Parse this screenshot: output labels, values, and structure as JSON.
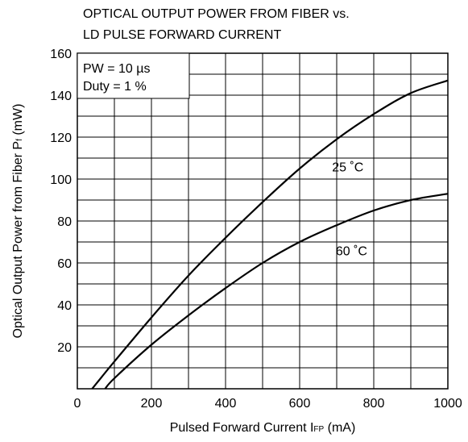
{
  "chart_data": {
    "type": "line",
    "title_lines": [
      "OPTICAL OUTPUT POWER FROM FIBER vs.",
      "LD PULSE FORWARD CURRENT"
    ],
    "xlabel": {
      "main": "Pulsed Forward Current  I",
      "sub": "FP",
      "unit": " (mA)"
    },
    "ylabel": {
      "main": "Optical Output Power from Fiber  P",
      "sub": "f",
      "unit": " (mW)"
    },
    "xlim": [
      0,
      1000
    ],
    "ylim": [
      0,
      160
    ],
    "x_ticks": [
      0,
      200,
      400,
      600,
      800,
      1000
    ],
    "y_ticks": [
      20,
      40,
      60,
      80,
      100,
      120,
      140,
      160
    ],
    "grid": true,
    "conditions": [
      "PW = 10 µs",
      "Duty = 1 %"
    ],
    "series": [
      {
        "name": "25 ˚C",
        "x": [
          40,
          100,
          200,
          300,
          400,
          500,
          600,
          700,
          800,
          900,
          1000
        ],
        "y": [
          0,
          13,
          34,
          54,
          72,
          89,
          105,
          119,
          131,
          141,
          147
        ]
      },
      {
        "name": "60 ˚C",
        "x": [
          75,
          100,
          200,
          300,
          400,
          500,
          600,
          700,
          800,
          900,
          1000
        ],
        "y": [
          0,
          5,
          21,
          35,
          48,
          60,
          70,
          78,
          85,
          90,
          93
        ]
      }
    ],
    "curve_labels": [
      {
        "text": "25 ˚C",
        "x": 730,
        "y": 106
      },
      {
        "text": "60 ˚C",
        "x": 740,
        "y": 66
      }
    ]
  }
}
